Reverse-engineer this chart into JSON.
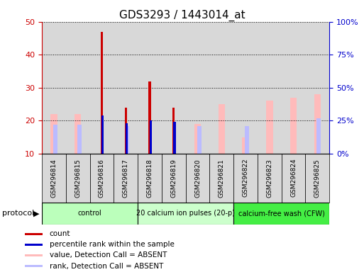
{
  "title": "GDS3293 / 1443014_at",
  "samples": [
    "GSM296814",
    "GSM296815",
    "GSM296816",
    "GSM296817",
    "GSM296818",
    "GSM296819",
    "GSM296820",
    "GSM296821",
    "GSM296822",
    "GSM296823",
    "GSM296824",
    "GSM296825"
  ],
  "count_values": [
    0,
    0,
    47,
    24,
    32,
    24,
    0,
    0,
    0,
    0,
    0,
    0
  ],
  "percentile_values": [
    0,
    0,
    29,
    23,
    25,
    24,
    0,
    0,
    0,
    0,
    0,
    0
  ],
  "value_absent": [
    22,
    22,
    0,
    0,
    0,
    0,
    19,
    25,
    15,
    26,
    27,
    28
  ],
  "rank_absent": [
    22,
    22,
    0,
    21,
    0,
    0,
    21,
    0,
    21,
    0,
    0,
    27
  ],
  "ylim_left": [
    10,
    50
  ],
  "ylim_right": [
    0,
    100
  ],
  "yticks_left": [
    10,
    20,
    30,
    40,
    50
  ],
  "yticks_right": [
    0,
    25,
    50,
    75,
    100
  ],
  "protocols": [
    {
      "label": "control",
      "start": 0,
      "end": 4,
      "color": "#bbffbb"
    },
    {
      "label": "20 calcium ion pulses (20-p)",
      "start": 4,
      "end": 8,
      "color": "#ccffcc"
    },
    {
      "label": "calcium-free wash (CFW)",
      "start": 8,
      "end": 12,
      "color": "#44ee44"
    }
  ],
  "count_color": "#cc0000",
  "percentile_color": "#0000cc",
  "value_absent_color": "#ffbbbb",
  "rank_absent_color": "#bbbbff",
  "col_bg_color": "#d8d8d8",
  "left_axis_color": "#cc0000",
  "right_axis_color": "#0000cc",
  "plot_bg_color": "#ffffff"
}
